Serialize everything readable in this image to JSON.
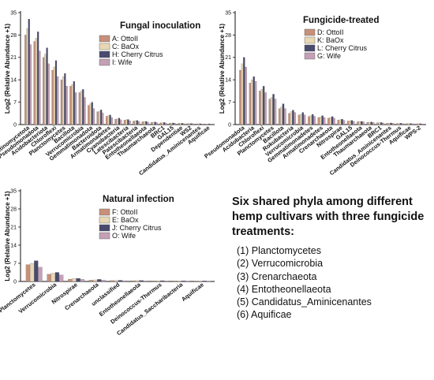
{
  "chart_data": [
    {
      "type": "bar",
      "title": "Fungal inoculation",
      "ylabel": "Log2 (Relative Abundance +1)",
      "ylim": [
        0,
        35
      ],
      "yticks": [
        0,
        7,
        14,
        21,
        28,
        35
      ],
      "legend_position": "top-right",
      "categories": [
        "Actinomycetota",
        "Pseudomonadota",
        "Acidobacteriota",
        "Chloroflexi",
        "Planctomycetes",
        "Bacillota",
        "Verrucomicrobia",
        "Gemmatimonadota",
        "Bacteroidota",
        "Armatimonadetes",
        "Cyanobacteria",
        "Latescibacteria",
        "Patescibacteria",
        "Entotheonellaeota",
        "Thaumarchaeota",
        "BRC1",
        "GAL15",
        "Dependentiae",
        "WS2",
        "Candidatus_Aminicenantes",
        "Aquificae"
      ],
      "series": [
        {
          "name": "A: OttoII",
          "values": [
            28,
            26,
            21,
            17,
            14,
            12,
            10,
            6,
            4,
            2.6,
            1.7,
            1.4,
            1.1,
            0.9,
            0.7,
            0.55,
            0.45,
            0.38,
            0.3,
            0.25,
            0.2
          ]
        },
        {
          "name": "C: BaOx",
          "values": [
            30,
            27,
            22,
            18,
            15,
            12.5,
            10.5,
            6.5,
            4.2,
            2.8,
            1.8,
            1.5,
            1.2,
            0.95,
            0.75,
            0.6,
            0.48,
            0.4,
            0.32,
            0.26,
            0.22
          ]
        },
        {
          "name": "H: Cherry Citrus",
          "values": [
            33,
            29,
            24,
            20,
            16,
            13.5,
            11,
            7,
            4.6,
            3,
            2,
            1.6,
            1.3,
            1,
            0.8,
            0.65,
            0.5,
            0.42,
            0.35,
            0.28,
            0.24
          ]
        },
        {
          "name": "I: Wife",
          "values": [
            25,
            23,
            19,
            15,
            12,
            10,
            8.5,
            5,
            3.6,
            2.2,
            1.5,
            1.2,
            1,
            0.8,
            0.6,
            0.5,
            0.4,
            0.33,
            0.27,
            0.22,
            0.18
          ]
        }
      ]
    },
    {
      "type": "bar",
      "title": "Fungicide-treated",
      "ylabel": "Log2 (Relative Abundance +1)",
      "ylim": [
        0,
        35
      ],
      "yticks": [
        0,
        7,
        14,
        21,
        28,
        35
      ],
      "legend_position": "top-right",
      "categories": [
        "Pseudomonadota",
        "Acidobacteria",
        "Chloroflexi",
        "Planctomycetes",
        "Bacillota",
        "Rokubacteria",
        "Verrucomicrobia",
        "Gemmatimonadetes",
        "Armatimonadetes",
        "Crenarchaeota",
        "Nitrospirae",
        "GAL15",
        "Entotheonellaeota",
        "Thaumarchaeota",
        "BRC1",
        "Candidatus_Aminicenantes",
        "Deinococcus-Thermus",
        "Aquificae",
        "WPS-2"
      ],
      "series": [
        {
          "name": "D: OttoII",
          "values": [
            17,
            13,
            10.5,
            8,
            5,
            3.5,
            3,
            2.5,
            2.2,
            2,
            1.4,
            1.1,
            0.9,
            0.7,
            0.55,
            0.45,
            0.35,
            0.3,
            0.25
          ]
        },
        {
          "name": "K: BaOx",
          "values": [
            19,
            14,
            11,
            8.5,
            5.5,
            4,
            3.2,
            2.8,
            2.4,
            2.2,
            1.5,
            1.2,
            0.95,
            0.75,
            0.6,
            0.48,
            0.38,
            0.32,
            0.27
          ]
        },
        {
          "name": "L: Cherry Citrus",
          "values": [
            21,
            15,
            12,
            9.5,
            6.5,
            4.5,
            3.8,
            3.2,
            2.8,
            2.5,
            1.7,
            1.3,
            1,
            0.8,
            0.65,
            0.5,
            0.4,
            0.34,
            0.28
          ]
        },
        {
          "name": "G: Wife",
          "values": [
            18,
            13.5,
            10,
            8,
            5,
            3.8,
            3,
            2.6,
            2.2,
            2,
            1.3,
            1,
            0.85,
            0.65,
            0.5,
            0.42,
            0.33,
            0.28,
            0.23
          ]
        }
      ]
    },
    {
      "type": "bar",
      "title": "Natural infection",
      "ylabel": "Log2 (Relative Abundance +1)",
      "ylim": [
        0,
        35
      ],
      "yticks": [
        0,
        7,
        14,
        21,
        28,
        35
      ],
      "legend_position": "top-right",
      "categories": [
        "Planctomycetes",
        "Verrucomicrobia",
        "Nitrospirae",
        "Crenarchaeota",
        "unclassified",
        "Entotheonellaeota",
        "Deinococcus-Thermus",
        "Candidatus_Saccharibacteria",
        "Aquificae"
      ],
      "series": [
        {
          "name": "F: OttoII",
          "values": [
            6.5,
            2.8,
            0.9,
            0.5,
            0.35,
            0.3,
            0.25,
            0.2,
            0.18
          ]
        },
        {
          "name": "E: BaOx",
          "values": [
            7,
            3.2,
            1.1,
            0.6,
            0.4,
            0.35,
            0.28,
            0.22,
            0.2
          ]
        },
        {
          "name": "J: Cherry Citrus",
          "values": [
            8,
            3.5,
            1.2,
            0.8,
            0.45,
            0.38,
            0.3,
            0.25,
            0.22
          ]
        },
        {
          "name": "O: Wife",
          "values": [
            5.5,
            2.5,
            0.8,
            0.5,
            0.3,
            0.27,
            0.22,
            0.18,
            0.16
          ]
        }
      ]
    }
  ],
  "colors": {
    "series": [
      "#c8907a",
      "#e8d8b4",
      "#4a4a6e",
      "#c4a0b6"
    ],
    "axis": "#111111"
  },
  "summary": {
    "heading": "Six shared phyla among different hemp cultivars with three fungicide treatments:",
    "items": [
      "(1) Planctomycetes",
      "(2) Verrucomicrobia",
      "(3) Crenarchaeota",
      "(4) Entotheonellaeota",
      "(5) Candidatus_Aminicenantes",
      "(6) Aquificae"
    ]
  }
}
